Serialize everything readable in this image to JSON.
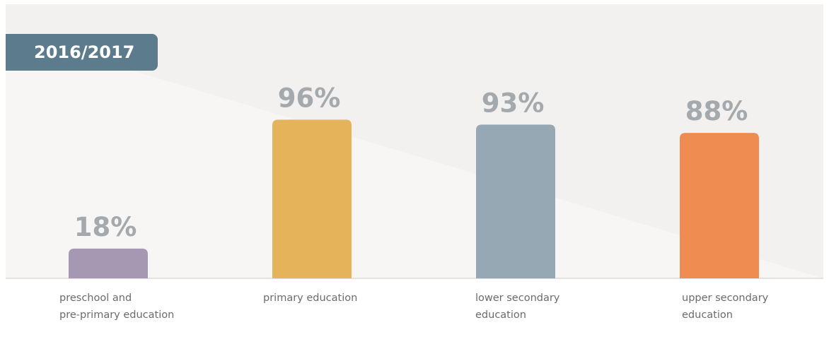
{
  "header": {
    "period": "2016/2017"
  },
  "chart_data": {
    "type": "bar",
    "categories": [
      "preschool and\npre-primary  education",
      "primary education",
      "lower secondary\neducation",
      "upper secondary\neducation"
    ],
    "values": [
      18,
      96,
      93,
      88
    ],
    "value_labels": [
      "18%",
      "96%",
      "93%",
      "88%"
    ],
    "colors": [
      "#a698b3",
      "#e5b45a",
      "#95a8b4",
      "#ef8c52"
    ],
    "ylim": [
      0,
      100
    ],
    "unit": "%",
    "grid": false,
    "legend": false
  }
}
